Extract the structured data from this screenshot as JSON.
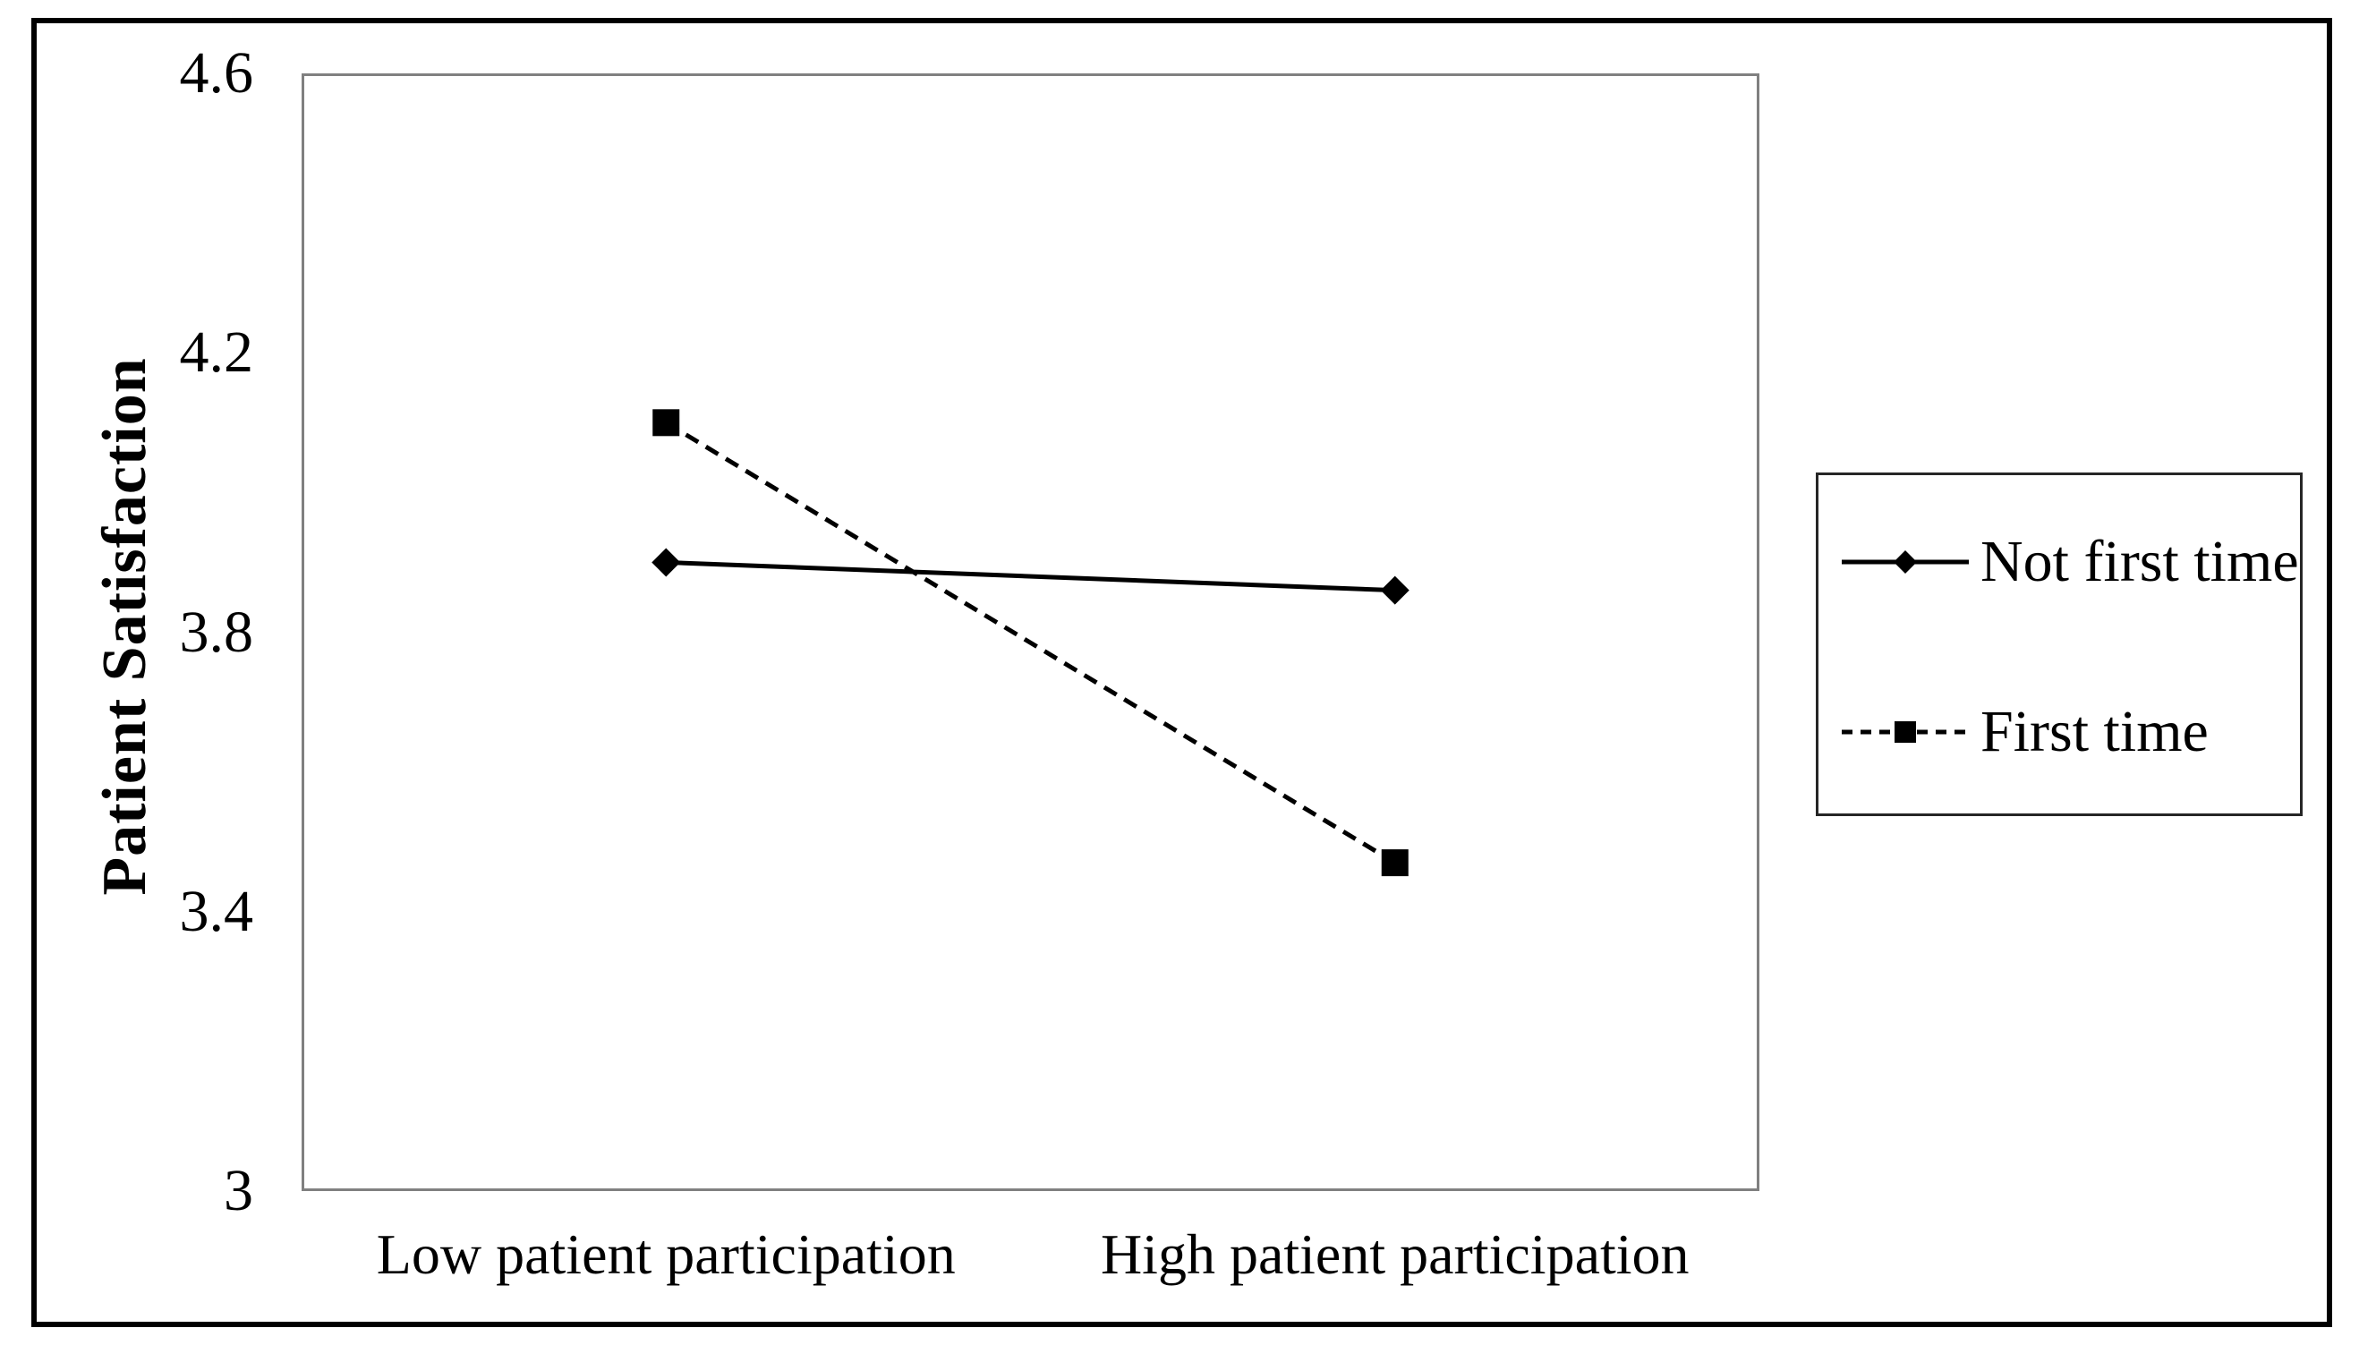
{
  "chart_data": {
    "type": "line",
    "title": "",
    "ylabel": "Patient Satisfaction",
    "xlabel": "",
    "categories": [
      "Low patient participation",
      "High patient participation"
    ],
    "series": [
      {
        "name": "Not first time",
        "values": [
          3.9,
          3.86
        ],
        "line_style": "solid",
        "marker": "diamond",
        "color": "#000000"
      },
      {
        "name": "First time",
        "values": [
          4.1,
          3.47
        ],
        "line_style": "dashed",
        "marker": "square",
        "color": "#000000"
      }
    ],
    "ylim": [
      3,
      4.6
    ],
    "yticks": [
      4.6,
      4.2,
      3.8,
      3.4,
      3
    ],
    "ytick_labels": [
      "4.6",
      "4.2",
      "3.8",
      "3.4",
      "3"
    ],
    "grid": false,
    "legend_position": "right",
    "colors": {
      "background": "#ffffff",
      "frame_border": "#000000",
      "plot_border": "#808080",
      "legend_border": "#262626",
      "text": "#000000"
    }
  }
}
